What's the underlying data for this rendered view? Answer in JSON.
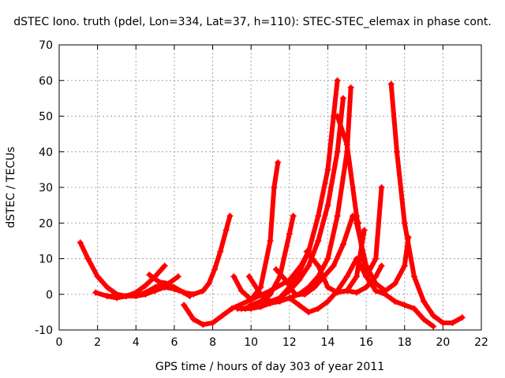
{
  "chart_data": {
    "type": "scatter",
    "title": "dSTEC Iono. truth (pdel, Lon=334, Lat=37, h=110): STEC-STEC_elemax in phase cont.",
    "xlabel": "GPS time / hours of day 303 of year 2011",
    "ylabel": "dSTEC  / TECUs",
    "xlim": [
      0,
      22
    ],
    "ylim": [
      -10,
      70
    ],
    "xticks": [
      "0",
      "2",
      "4",
      "6",
      "8",
      "10",
      "12",
      "14",
      "16",
      "18",
      "20",
      "22"
    ],
    "yticks": [
      "-10",
      "0",
      "10",
      "20",
      "30",
      "40",
      "50",
      "60",
      "70"
    ],
    "grid": true,
    "marker": "plus",
    "color": "#ff0000",
    "series": [
      {
        "x": [
          1.1,
          1.5,
          2.0,
          2.5,
          3.0,
          3.5,
          4.0,
          4.5,
          5.0,
          5.5,
          6.0,
          6.5,
          6.8
        ],
        "y": [
          14.5,
          10,
          5,
          2,
          0,
          -0.5,
          -0.5,
          0.5,
          2,
          3,
          2,
          0.5,
          -0.5
        ]
      },
      {
        "x": [
          1.9,
          2.5,
          3.0,
          3.5,
          4.0,
          4.5,
          5.0,
          5.5
        ],
        "y": [
          0.5,
          -0.5,
          -1,
          -0.5,
          0.5,
          2.5,
          5,
          8
        ]
      },
      {
        "x": [
          2.5,
          3.0,
          3.5,
          4.0,
          4.5,
          5.0,
          5.5,
          6.0,
          6.5,
          7.0,
          7.5,
          7.8,
          8.1,
          8.4,
          8.7,
          8.9
        ],
        "y": [
          -0.5,
          -0.5,
          -0.5,
          -0.5,
          0,
          1,
          2,
          1.5,
          0.5,
          0,
          1,
          3,
          7,
          12,
          18,
          22
        ]
      },
      {
        "x": [
          4.7,
          5.2,
          5.7,
          6.2
        ],
        "y": [
          5.5,
          3.5,
          3,
          5
        ]
      },
      {
        "x": [
          6.5,
          7.0,
          7.5,
          8.0,
          8.5,
          9.0,
          10.0,
          11.0,
          12.0,
          12.6,
          13.0
        ],
        "y": [
          -3,
          -7,
          -8.5,
          -8,
          -6,
          -4,
          -1.5,
          1,
          4,
          8,
          12
        ]
      },
      {
        "x": [
          9.1,
          9.5,
          10.0,
          10.5,
          11.0,
          11.2,
          11.4
        ],
        "y": [
          5,
          1,
          -1.5,
          2,
          15,
          30,
          37
        ]
      },
      {
        "x": [
          9.3,
          9.7,
          10.0,
          10.5,
          11.0,
          11.5,
          12.0,
          12.2
        ],
        "y": [
          -4,
          -4,
          -3,
          -2,
          0,
          5,
          17,
          22
        ]
      },
      {
        "x": [
          9.5,
          10.0,
          10.5,
          11.0,
          11.5,
          12.0,
          12.5,
          13.0,
          13.5,
          14.0,
          14.3,
          14.5
        ],
        "y": [
          -4,
          -4,
          -3.5,
          -2.5,
          -1,
          2,
          6,
          12,
          22,
          35,
          50,
          60
        ]
      },
      {
        "x": [
          9.9,
          10.5,
          11.0,
          11.5,
          12.0,
          12.5,
          13.0,
          13.5,
          14.0,
          14.5,
          14.8
        ],
        "y": [
          5,
          0,
          -2,
          -1,
          1,
          4,
          8,
          15,
          25,
          40,
          55
        ]
      },
      {
        "x": [
          10.5,
          11.0,
          11.5,
          12.0,
          12.5,
          13.0,
          13.5,
          14.0,
          14.5,
          15.0,
          15.2
        ],
        "y": [
          -2,
          -2.5,
          -2,
          -1,
          0,
          2,
          5,
          10,
          22,
          40,
          58
        ]
      },
      {
        "x": [
          11.3,
          11.8,
          12.3,
          12.8,
          13.3,
          13.8,
          14.3,
          14.8,
          15.3,
          15.6
        ],
        "y": [
          7,
          4,
          0,
          0,
          2,
          5,
          8,
          14,
          22,
          20
        ]
      },
      {
        "x": [
          12.0,
          12.5,
          13.0,
          13.5,
          14.0,
          14.5,
          15.0,
          15.5,
          16.0,
          16.5,
          17.0,
          17.5,
          18.0,
          18.5,
          19.0,
          19.5
        ],
        "y": [
          -1,
          -3,
          -5,
          -4,
          -2,
          1,
          5,
          10,
          5,
          1,
          0,
          -2,
          -3,
          -4,
          -7,
          -9
        ]
      },
      {
        "x": [
          12.9,
          13.5,
          14.0,
          14.5,
          15.0,
          15.5,
          15.9
        ],
        "y": [
          12,
          8,
          2,
          0.5,
          1,
          5,
          18
        ]
      },
      {
        "x": [
          14.5,
          15.0,
          15.5,
          16.0,
          16.5,
          16.8
        ],
        "y": [
          50,
          42,
          22,
          5,
          10,
          30
        ]
      },
      {
        "x": [
          15.0,
          15.5,
          16.0,
          16.5,
          16.8
        ],
        "y": [
          1,
          0.5,
          2,
          5,
          8
        ]
      },
      {
        "x": [
          15.5,
          16.0,
          16.5,
          17.0,
          17.5,
          18.0,
          18.2
        ],
        "y": [
          20,
          8,
          3,
          1,
          3,
          8,
          16
        ]
      },
      {
        "x": [
          17.3,
          17.6,
          18.0,
          18.5,
          19.0,
          19.5,
          20.0,
          20.5,
          21.0
        ],
        "y": [
          59,
          40,
          20,
          5,
          -2,
          -6,
          -8,
          -8,
          -6.5
        ]
      }
    ]
  }
}
